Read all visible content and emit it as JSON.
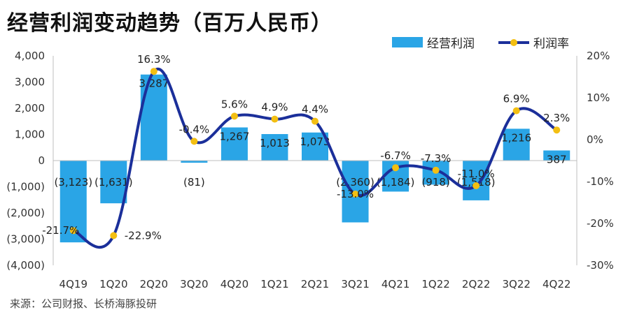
{
  "title": "经营利润变动趋势（百万人民币）",
  "source": "来源：公司财报、长桥海豚投研",
  "legend": {
    "bar": "经营利润",
    "line": "利润率"
  },
  "colors": {
    "bar": "#2aa5e6",
    "line": "#1b2f9a",
    "marker": "#f3bf12"
  },
  "chart_data": {
    "type": "bar",
    "categories": [
      "4Q19",
      "1Q20",
      "2Q20",
      "3Q20",
      "4Q20",
      "1Q21",
      "2Q21",
      "3Q21",
      "4Q21",
      "1Q22",
      "2Q22",
      "3Q22",
      "4Q22"
    ],
    "series": [
      {
        "name": "经营利润",
        "type": "bar",
        "axis": "left",
        "values": [
          -3123,
          -1631,
          3287,
          -81,
          1267,
          1013,
          1073,
          -2360,
          -1184,
          -918,
          -1518,
          1216,
          387
        ],
        "labels": [
          "(3,123)",
          "(1,631)",
          "3,287",
          "(81)",
          "1,267",
          "1,013",
          "1,073",
          "(2,360)",
          "(1,184)",
          "(918)",
          "(1,518)",
          "1,216",
          "387"
        ]
      },
      {
        "name": "利润率",
        "type": "line",
        "axis": "right",
        "values": [
          -21.7,
          -22.9,
          16.3,
          -0.4,
          5.6,
          4.9,
          4.4,
          -13.0,
          -6.7,
          -7.3,
          -11.0,
          6.9,
          2.3
        ],
        "labels": [
          "-21.7%",
          "-22.9%",
          "16.3%",
          "-0.4%",
          "5.6%",
          "4.9%",
          "4.4%",
          "-13.0%",
          "-6.7%",
          "-7.3%",
          "-11.0%",
          "6.9%",
          "2.3%"
        ]
      }
    ],
    "y_left": {
      "range": [
        -4000,
        4000
      ],
      "ticks": [
        4000,
        3000,
        2000,
        1000,
        0,
        -1000,
        -2000,
        -3000,
        -4000
      ],
      "tick_labels": [
        "4,000",
        "3,000",
        "2,000",
        "1,000",
        "0",
        "(1,000)",
        "(2,000)",
        "(3,000)",
        "(4,000)"
      ]
    },
    "y_right": {
      "range": [
        -30,
        20
      ],
      "ticks": [
        20,
        10,
        0,
        -10,
        -20,
        -30
      ],
      "tick_labels": [
        "20%",
        "10%",
        "0%",
        "-10%",
        "-20%",
        "-30%"
      ]
    },
    "grid": false,
    "legend_position": "top-right"
  }
}
